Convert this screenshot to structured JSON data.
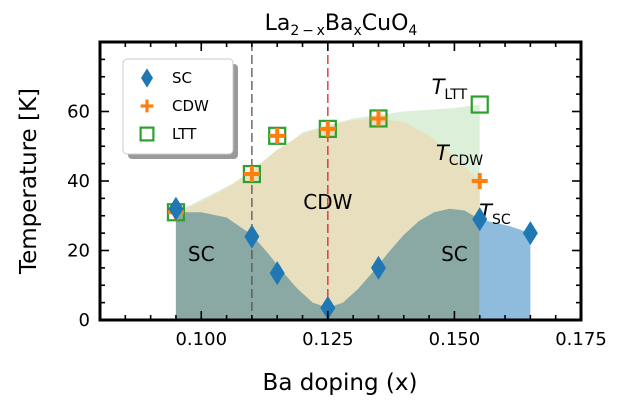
{
  "chart_data": {
    "type": "scatter",
    "title": {
      "base": "La",
      "sub1": "2 − x",
      "mid": "Ba",
      "sub2": "x",
      "end": "CuO",
      "sub3": "4"
    },
    "xlabel": "Ba doping (x)",
    "ylabel": "Temperature [K]",
    "xlim": [
      0.08,
      0.175
    ],
    "ylim": [
      0,
      80
    ],
    "xticks": [
      0.1,
      0.125,
      0.15,
      0.175
    ],
    "xtick_labels": [
      "0.100",
      "0.125",
      "0.150",
      "0.175"
    ],
    "yticks": [
      0,
      20,
      40,
      60
    ],
    "ytick_labels": [
      "0",
      "20",
      "40",
      "60"
    ],
    "legend_position": "top-left",
    "series": [
      {
        "name": "SC",
        "marker": "diamond",
        "color": "#1f77b4",
        "x": [
          0.095,
          0.11,
          0.115,
          0.125,
          0.135,
          0.155,
          0.165
        ],
        "y": [
          32,
          24,
          13.5,
          3.5,
          15,
          29,
          25
        ]
      },
      {
        "name": "CDW",
        "marker": "plus",
        "color": "#ff7f0e",
        "x": [
          0.095,
          0.11,
          0.115,
          0.125,
          0.135,
          0.155
        ],
        "y": [
          31,
          42,
          53,
          55,
          58,
          40
        ]
      },
      {
        "name": "LTT",
        "marker": "square",
        "color": "#2ca02c",
        "x": [
          0.095,
          0.11,
          0.115,
          0.125,
          0.135,
          0.155
        ],
        "y": [
          31,
          42,
          53,
          55,
          58,
          62
        ]
      }
    ],
    "vertical_lines": [
      {
        "x": 0.11,
        "color": "#555555",
        "style": "dashed"
      },
      {
        "x": 0.125,
        "color": "#d62728",
        "style": "dashed"
      }
    ],
    "regions": {
      "ltt": {
        "color": "#dcefd8",
        "x": [
          0.095,
          0.11,
          0.12,
          0.13,
          0.14,
          0.15,
          0.155
        ],
        "y": [
          31,
          42,
          54,
          58,
          60,
          61,
          62
        ]
      },
      "cdw": {
        "color": "#e8dfbf",
        "x": [
          0.095,
          0.1,
          0.105,
          0.11,
          0.115,
          0.12,
          0.125,
          0.13,
          0.135,
          0.14,
          0.145,
          0.15,
          0.155
        ],
        "y": [
          31,
          34,
          38,
          43,
          49,
          53.5,
          56,
          57.5,
          58,
          57,
          53,
          47,
          40
        ]
      },
      "sc_left": {
        "color": "#8ba9a4",
        "x": [
          0.095,
          0.1,
          0.105,
          0.11,
          0.113,
          0.116,
          0.119,
          0.122,
          0.125,
          0.128,
          0.131,
          0.134,
          0.137,
          0.14,
          0.143,
          0.146,
          0.149,
          0.152,
          0.155
        ],
        "y": [
          31,
          31,
          29.5,
          24.5,
          19.5,
          14,
          9,
          5,
          3.5,
          5,
          9,
          14,
          19.5,
          24.5,
          28.5,
          31,
          32,
          31.5,
          29
        ]
      },
      "sc_right": {
        "color": "#8fbcdc",
        "x": [
          0.155,
          0.158,
          0.161,
          0.165
        ],
        "y": [
          29,
          28,
          27,
          25
        ]
      }
    },
    "annotations": [
      {
        "id": "sc_left",
        "text": "SC",
        "x": 0.1,
        "y": 17
      },
      {
        "id": "cdw",
        "text": "CDW",
        "x": 0.125,
        "y": 32
      },
      {
        "id": "sc_right",
        "text": "SC",
        "x": 0.15,
        "y": 17
      },
      {
        "id": "t_ltt",
        "base": "T",
        "sub": "LTT",
        "x": 0.149,
        "y": 65
      },
      {
        "id": "t_cdw",
        "base": "T",
        "sub": "CDW",
        "x": 0.151,
        "y": 46
      },
      {
        "id": "t_sc",
        "base": "T",
        "sub": "SC",
        "x": 0.158,
        "y": 29
      }
    ]
  }
}
